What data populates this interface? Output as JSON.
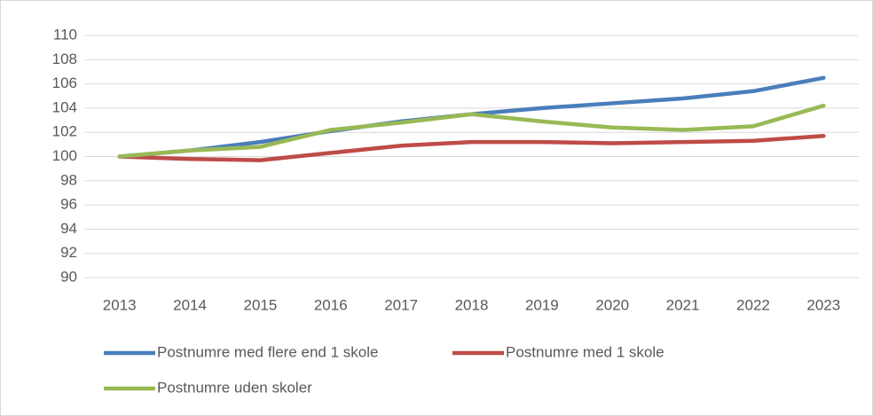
{
  "chart_data": {
    "type": "line",
    "categories": [
      "2013",
      "2014",
      "2015",
      "2016",
      "2017",
      "2018",
      "2019",
      "2020",
      "2021",
      "2022",
      "2023"
    ],
    "series": [
      {
        "name": "Postnumre med flere end 1 skole",
        "color": "#4a7ebb",
        "values": [
          100,
          100.5,
          101.2,
          102.1,
          102.9,
          103.5,
          104.0,
          104.4,
          104.8,
          105.4,
          106.5
        ]
      },
      {
        "name": "Postnumre med 1 skole",
        "color": "#be4b48",
        "values": [
          100,
          99.8,
          99.7,
          100.3,
          100.9,
          101.2,
          101.2,
          101.1,
          101.2,
          101.3,
          101.7
        ]
      },
      {
        "name": "Postnumre uden skoler",
        "color": "#98b954",
        "values": [
          100,
          100.5,
          100.8,
          102.2,
          102.8,
          103.5,
          102.9,
          102.4,
          102.2,
          102.5,
          104.2
        ]
      }
    ],
    "ylim": [
      90,
      110
    ],
    "yticks": [
      90,
      92,
      94,
      96,
      98,
      100,
      102,
      104,
      106,
      108,
      110
    ],
    "grid": true
  }
}
